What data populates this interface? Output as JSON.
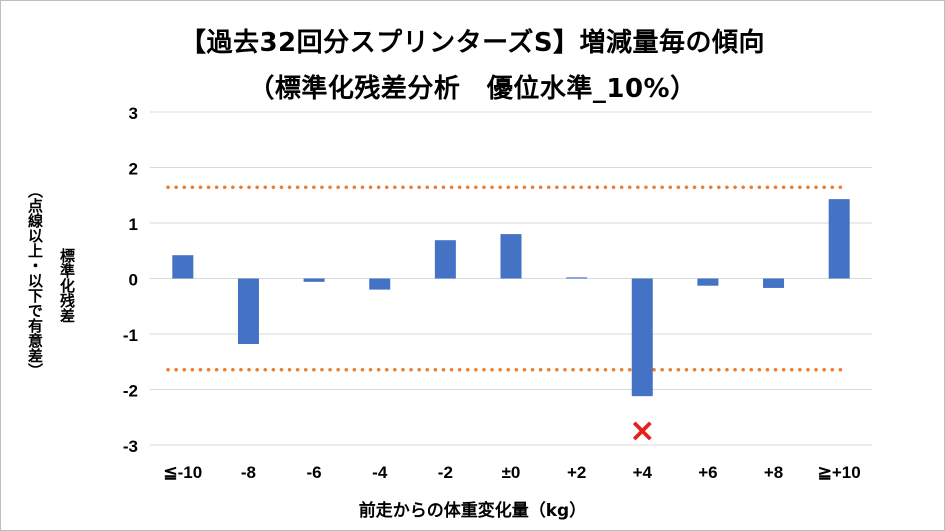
{
  "chart_data": {
    "type": "bar",
    "title_line1": "【過去32回分スプリンターズS】増減量毎の傾向",
    "title_line2": "（標準化残差分析　優位水準_10%）",
    "ylabel_main": "標準化残差",
    "ylabel_sub": "（点線以上・以下で有意差）",
    "xlabel": "前走からの体重変化量（kg）",
    "categories": [
      "≦-10",
      "-8",
      "-6",
      "-4",
      "-2",
      "±0",
      "+2",
      "+4",
      "+6",
      "+8",
      "≧+10"
    ],
    "values": [
      0.42,
      -1.18,
      -0.06,
      -0.2,
      0.69,
      0.8,
      0.02,
      -2.12,
      -0.13,
      -0.17,
      1.43
    ],
    "ylim": [
      -3,
      3
    ],
    "yticks": [
      3,
      2,
      1,
      0,
      -1,
      -2,
      -3
    ],
    "threshold_upper": 1.645,
    "threshold_lower": -1.645,
    "marker_category": "+4",
    "marker_symbol": "×",
    "colors": {
      "bar": "#4472c4",
      "threshold": "#ed7d31",
      "grid": "#d9d9d9",
      "marker": "#e8201c"
    },
    "grid": true
  }
}
